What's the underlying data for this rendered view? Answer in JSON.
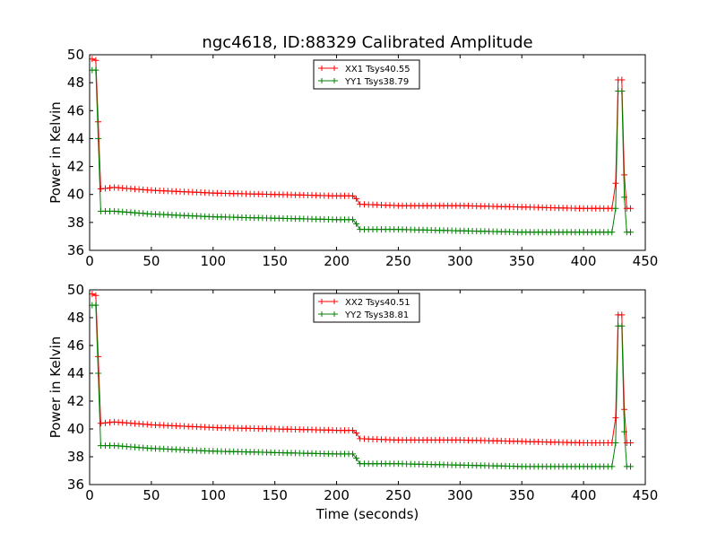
{
  "figure": {
    "title": "ngc4618, ID:88329 Calibrated Amplitude",
    "xlabel": "Time (seconds)"
  },
  "chart_data": [
    {
      "type": "line",
      "ylabel": "Power in Kelvin",
      "xlim": [
        0,
        450
      ],
      "ylim": [
        36,
        50
      ],
      "xticks": [
        0,
        50,
        100,
        150,
        200,
        250,
        300,
        350,
        400,
        450
      ],
      "yticks": [
        36,
        38,
        40,
        42,
        44,
        46,
        48,
        50
      ],
      "marker": "+",
      "legend_position": "top-center",
      "series": [
        {
          "name": "XX1 Tsys40.55",
          "color": "#ff0000",
          "points": [
            [
              2,
              49.7
            ],
            [
              5,
              49.6
            ],
            [
              7,
              45.2
            ],
            [
              9,
              40.4
            ],
            [
              20,
              40.5
            ],
            [
              50,
              40.3
            ],
            [
              100,
              40.1
            ],
            [
              150,
              40.0
            ],
            [
              200,
              39.9
            ],
            [
              213,
              39.9
            ],
            [
              216,
              39.7
            ],
            [
              219,
              39.3
            ],
            [
              250,
              39.2
            ],
            [
              300,
              39.2
            ],
            [
              350,
              39.1
            ],
            [
              400,
              39.0
            ],
            [
              423,
              39.0
            ],
            [
              426,
              40.8
            ],
            [
              428,
              48.2
            ],
            [
              431,
              48.2
            ],
            [
              433,
              41.4
            ],
            [
              435,
              39.0
            ],
            [
              438,
              39.0
            ]
          ]
        },
        {
          "name": "YY1 Tsys38.79",
          "color": "#008000",
          "points": [
            [
              2,
              48.9
            ],
            [
              5,
              48.9
            ],
            [
              7,
              44.0
            ],
            [
              9,
              38.8
            ],
            [
              20,
              38.8
            ],
            [
              50,
              38.6
            ],
            [
              100,
              38.4
            ],
            [
              150,
              38.3
            ],
            [
              200,
              38.2
            ],
            [
              213,
              38.2
            ],
            [
              216,
              37.9
            ],
            [
              219,
              37.5
            ],
            [
              250,
              37.5
            ],
            [
              300,
              37.4
            ],
            [
              350,
              37.3
            ],
            [
              400,
              37.3
            ],
            [
              423,
              37.3
            ],
            [
              426,
              39.0
            ],
            [
              428,
              47.4
            ],
            [
              431,
              47.4
            ],
            [
              433,
              39.8
            ],
            [
              435,
              37.3
            ],
            [
              438,
              37.3
            ]
          ]
        }
      ]
    },
    {
      "type": "line",
      "ylabel": "Power in Kelvin",
      "xlim": [
        0,
        450
      ],
      "ylim": [
        36,
        50
      ],
      "xticks": [
        0,
        50,
        100,
        150,
        200,
        250,
        300,
        350,
        400,
        450
      ],
      "yticks": [
        36,
        38,
        40,
        42,
        44,
        46,
        48,
        50
      ],
      "marker": "+",
      "legend_position": "top-center",
      "series": [
        {
          "name": "XX2 Tsys40.51",
          "color": "#ff0000",
          "points": [
            [
              2,
              49.7
            ],
            [
              5,
              49.6
            ],
            [
              7,
              45.2
            ],
            [
              9,
              40.4
            ],
            [
              20,
              40.5
            ],
            [
              50,
              40.3
            ],
            [
              100,
              40.1
            ],
            [
              150,
              40.0
            ],
            [
              200,
              39.9
            ],
            [
              213,
              39.9
            ],
            [
              216,
              39.7
            ],
            [
              219,
              39.3
            ],
            [
              250,
              39.2
            ],
            [
              300,
              39.2
            ],
            [
              350,
              39.1
            ],
            [
              400,
              39.0
            ],
            [
              423,
              39.0
            ],
            [
              426,
              40.8
            ],
            [
              428,
              48.2
            ],
            [
              431,
              48.2
            ],
            [
              433,
              41.4
            ],
            [
              435,
              39.0
            ],
            [
              438,
              39.0
            ]
          ]
        },
        {
          "name": "YY2 Tsys38.81",
          "color": "#008000",
          "points": [
            [
              2,
              48.9
            ],
            [
              5,
              48.9
            ],
            [
              7,
              44.0
            ],
            [
              9,
              38.8
            ],
            [
              20,
              38.8
            ],
            [
              50,
              38.6
            ],
            [
              100,
              38.4
            ],
            [
              150,
              38.3
            ],
            [
              200,
              38.2
            ],
            [
              213,
              38.2
            ],
            [
              216,
              37.9
            ],
            [
              219,
              37.5
            ],
            [
              250,
              37.5
            ],
            [
              300,
              37.4
            ],
            [
              350,
              37.3
            ],
            [
              400,
              37.3
            ],
            [
              423,
              37.3
            ],
            [
              426,
              39.0
            ],
            [
              428,
              47.4
            ],
            [
              431,
              47.4
            ],
            [
              433,
              39.8
            ],
            [
              435,
              37.3
            ],
            [
              438,
              37.3
            ]
          ]
        }
      ]
    }
  ]
}
